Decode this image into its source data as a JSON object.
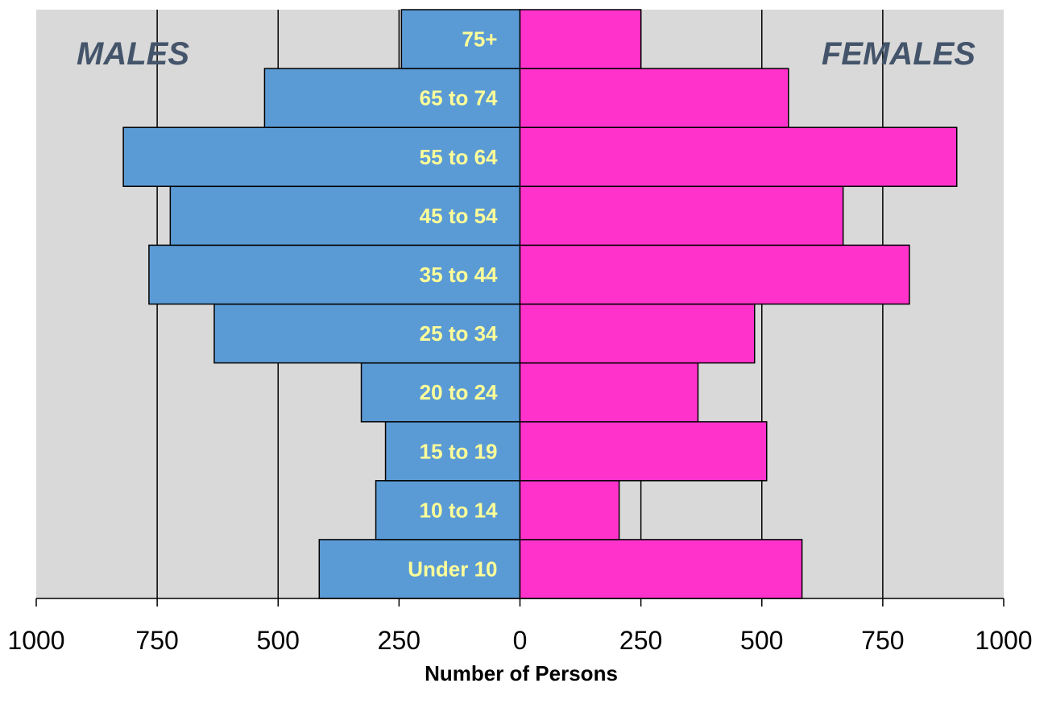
{
  "chart_data": {
    "type": "bar",
    "orientation": "horizontal",
    "categories": [
      "Under 10",
      "10 to 14",
      "15 to 19",
      "20 to 24",
      "25 to 34",
      "35 to 44",
      "45 to 54",
      "55 to 64",
      "65 to 74",
      "75+"
    ],
    "series": [
      {
        "name": "MALES",
        "values": [
          415,
          298,
          278,
          328,
          632,
          767,
          723,
          820,
          528,
          245
        ]
      },
      {
        "name": "FEMALES",
        "values": [
          583,
          205,
          510,
          368,
          485,
          805,
          668,
          903,
          555,
          250
        ]
      }
    ],
    "xlabel": "Number of Persons",
    "ylabel": "",
    "xlim": [
      -1000,
      1000
    ],
    "xticks": [
      -1000,
      -750,
      -500,
      -250,
      0,
      250,
      500,
      750,
      1000
    ],
    "xtick_labels": [
      "1000",
      "750",
      "500",
      "250",
      "0",
      "250",
      "500",
      "750",
      "1000"
    ],
    "grid": true,
    "legend": "none",
    "colors": {
      "males": "#5b9bd5",
      "females": "#ff33cc",
      "age_labels": "#ffff99",
      "side_labels": "#44546a",
      "background": "#d9d9d9"
    }
  },
  "labels": {
    "males": "MALES",
    "females": "FEMALES"
  }
}
